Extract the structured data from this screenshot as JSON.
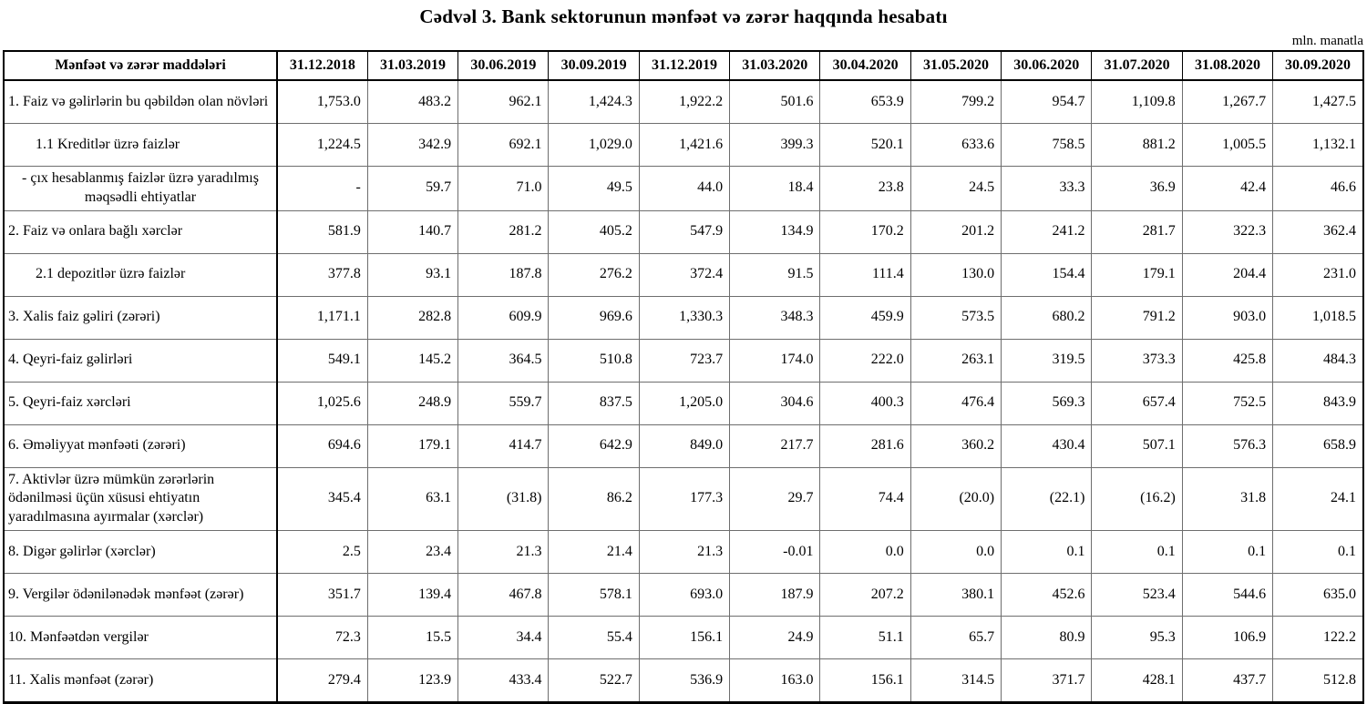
{
  "title": "Cədvəl 3. Bank sektorunun mənfəət və zərər haqqında hesabatı",
  "unit_note": "mln. manatla",
  "table": {
    "header": [
      "Mənfəət və zərər maddələri",
      "31.12.2018",
      "31.03.2019",
      "30.06.2019",
      "30.09.2019",
      "31.12.2019",
      "31.03.2020",
      "30.04.2020",
      "31.05.2020",
      "30.06.2020",
      "31.07.2020",
      "31.08.2020",
      "30.09.2020"
    ],
    "rows": [
      {
        "label": "1. Faiz və gəlirlərin bu qəbildən olan növləri",
        "style": "normal",
        "values": [
          "1,753.0",
          "483.2",
          "962.1",
          "1,424.3",
          "1,922.2",
          "501.6",
          "653.9",
          "799.2",
          "954.7",
          "1,109.8",
          "1,267.7",
          "1,427.5"
        ]
      },
      {
        "label": "1.1 Kreditlər üzrə faizlər",
        "style": "indent",
        "values": [
          "1,224.5",
          "342.9",
          "692.1",
          "1,029.0",
          "1,421.6",
          "399.3",
          "520.1",
          "633.6",
          "758.5",
          "881.2",
          "1,005.5",
          "1,132.1"
        ]
      },
      {
        "label": "-  çıx hesablanmış faizlər üzrə yaradılmış məqsədli ehtiyatlar",
        "style": "center",
        "values": [
          "-",
          "59.7",
          "71.0",
          "49.5",
          "44.0",
          "18.4",
          "23.8",
          "24.5",
          "33.3",
          "36.9",
          "42.4",
          "46.6"
        ]
      },
      {
        "label": "2. Faiz və onlara bağlı xərclər",
        "style": "normal",
        "values": [
          "581.9",
          "140.7",
          "281.2",
          "405.2",
          "547.9",
          "134.9",
          "170.2",
          "201.2",
          "241.2",
          "281.7",
          "322.3",
          "362.4"
        ]
      },
      {
        "label": "2.1 depozitlər üzrə faizlər",
        "style": "indent",
        "values": [
          "377.8",
          "93.1",
          "187.8",
          "276.2",
          "372.4",
          "91.5",
          "111.4",
          "130.0",
          "154.4",
          "179.1",
          "204.4",
          "231.0"
        ]
      },
      {
        "label": "3. Xalis faiz gəliri (zərəri)",
        "style": "normal",
        "values": [
          "1,171.1",
          "282.8",
          "609.9",
          "969.6",
          "1,330.3",
          "348.3",
          "459.9",
          "573.5",
          "680.2",
          "791.2",
          "903.0",
          "1,018.5"
        ]
      },
      {
        "label": "4. Qeyri-faiz gəlirləri",
        "style": "normal",
        "values": [
          "549.1",
          "145.2",
          "364.5",
          "510.8",
          "723.7",
          "174.0",
          "222.0",
          "263.1",
          "319.5",
          "373.3",
          "425.8",
          "484.3"
        ]
      },
      {
        "label": "5. Qeyri-faiz xərcləri",
        "style": "normal",
        "values": [
          "1,025.6",
          "248.9",
          "559.7",
          "837.5",
          "1,205.0",
          "304.6",
          "400.3",
          "476.4",
          "569.3",
          "657.4",
          "752.5",
          "843.9"
        ]
      },
      {
        "label": "6. Əməliyyat mənfəəti (zərəri)",
        "style": "normal",
        "values": [
          "694.6",
          "179.1",
          "414.7",
          "642.9",
          "849.0",
          "217.7",
          "281.6",
          "360.2",
          "430.4",
          "507.1",
          "576.3",
          "658.9"
        ]
      },
      {
        "label": "7. Aktivlər üzrə mümkün zərərlərin ödənilməsi üçün xüsusi ehtiyatın yaradılmasına ayırmalar (xərclər)",
        "style": "normal",
        "values": [
          "345.4",
          "63.1",
          "(31.8)",
          "86.2",
          "177.3",
          "29.7",
          "74.4",
          "(20.0)",
          "(22.1)",
          "(16.2)",
          "31.8",
          "24.1"
        ]
      },
      {
        "label": "8. Digər gəlirlər (xərclər)",
        "style": "normal",
        "values": [
          "2.5",
          "23.4",
          "21.3",
          "21.4",
          "21.3",
          "-0.01",
          "0.0",
          "0.0",
          "0.1",
          "0.1",
          "0.1",
          "0.1"
        ]
      },
      {
        "label": "9. Vergilər ödənilənədək mənfəət (zərər)",
        "style": "normal",
        "values": [
          "351.7",
          "139.4",
          "467.8",
          "578.1",
          "693.0",
          "187.9",
          "207.2",
          "380.1",
          "452.6",
          "523.4",
          "544.6",
          "635.0"
        ]
      },
      {
        "label": "10. Mənfəətdən vergilər",
        "style": "normal",
        "values": [
          "72.3",
          "15.5",
          "34.4",
          "55.4",
          "156.1",
          "24.9",
          "51.1",
          "65.7",
          "80.9",
          "95.3",
          "106.9",
          "122.2"
        ]
      },
      {
        "label": "11. Xalis mənfəət (zərər)",
        "style": "normal",
        "values": [
          "279.4",
          "123.9",
          "433.4",
          "522.7",
          "536.9",
          "163.0",
          "156.1",
          "314.5",
          "371.7",
          "428.1",
          "437.7",
          "512.8"
        ]
      }
    ]
  }
}
